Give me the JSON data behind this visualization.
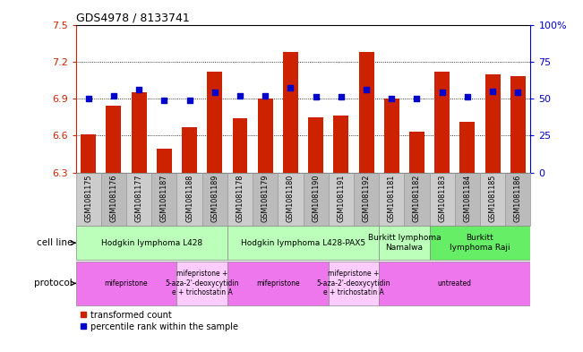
{
  "title": "GDS4978 / 8133741",
  "samples": [
    "GSM1081175",
    "GSM1081176",
    "GSM1081177",
    "GSM1081187",
    "GSM1081188",
    "GSM1081189",
    "GSM1081178",
    "GSM1081179",
    "GSM1081180",
    "GSM1081190",
    "GSM1081191",
    "GSM1081192",
    "GSM1081181",
    "GSM1081182",
    "GSM1081183",
    "GSM1081184",
    "GSM1081185",
    "GSM1081186"
  ],
  "transformed_count": [
    6.61,
    6.84,
    6.95,
    6.49,
    6.67,
    7.12,
    6.74,
    6.9,
    7.28,
    6.75,
    6.76,
    7.28,
    6.9,
    6.63,
    7.12,
    6.71,
    7.1,
    7.08
  ],
  "percentile_rank": [
    50,
    52,
    56,
    49,
    49,
    54,
    52,
    52,
    57,
    51,
    51,
    56,
    50,
    50,
    54,
    51,
    55,
    54
  ],
  "ylim_left": [
    6.3,
    7.5
  ],
  "ylim_right": [
    0,
    100
  ],
  "yticks_left": [
    6.3,
    6.6,
    6.9,
    7.2,
    7.5
  ],
  "ytick_labels_left": [
    "6.3",
    "6.6",
    "6.9",
    "7.2",
    "7.5"
  ],
  "yticks_right": [
    0,
    25,
    50,
    75,
    100
  ],
  "ytick_labels_right": [
    "0",
    "25",
    "50",
    "75",
    "100%"
  ],
  "hlines": [
    6.6,
    6.9,
    7.2
  ],
  "bar_color": "#cc2200",
  "dot_color": "#0000cc",
  "tick_bg_color": "#cccccc",
  "tick_bg_color2": "#dddddd",
  "cell_line_groups": [
    {
      "label": "Hodgkin lymphoma L428",
      "start": 0,
      "end": 5,
      "color": "#bbffbb"
    },
    {
      "label": "Hodgkin lymphoma L428-PAX5",
      "start": 6,
      "end": 11,
      "color": "#bbffbb"
    },
    {
      "label": "Burkitt lymphoma\nNamalwa",
      "start": 12,
      "end": 13,
      "color": "#bbffbb"
    },
    {
      "label": "Burkitt\nlymphoma Raji",
      "start": 14,
      "end": 17,
      "color": "#66ee66"
    }
  ],
  "protocol_groups": [
    {
      "label": "mifepristone",
      "start": 0,
      "end": 3,
      "color": "#ee77ee"
    },
    {
      "label": "mifepristone +\n5-aza-2'-deoxycytidin\ne + trichostatin A",
      "start": 4,
      "end": 5,
      "color": "#ffccff"
    },
    {
      "label": "mifepristone",
      "start": 6,
      "end": 9,
      "color": "#ee77ee"
    },
    {
      "label": "mifepristone +\n5-aza-2'-deoxycytidin\ne + trichostatin A",
      "start": 10,
      "end": 11,
      "color": "#ffccff"
    },
    {
      "label": "untreated",
      "start": 12,
      "end": 17,
      "color": "#ee77ee"
    }
  ],
  "legend_bar_label": "transformed count",
  "legend_dot_label": "percentile rank within the sample",
  "cell_line_label": "cell line",
  "protocol_label": "protocol",
  "axis_color_left": "#cc2200",
  "axis_color_right": "#0000cc"
}
